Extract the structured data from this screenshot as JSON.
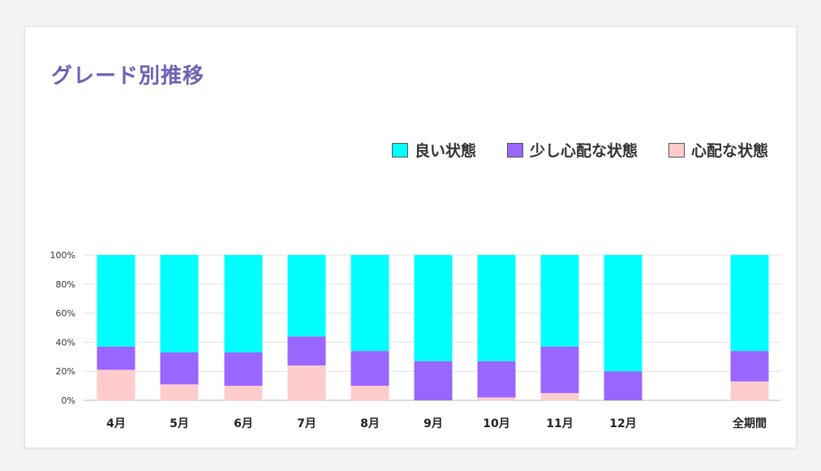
{
  "card": {
    "title": "グレード別推移"
  },
  "chart_data": {
    "type": "bar",
    "stacked": true,
    "percent": true,
    "categories": [
      "4月",
      "5月",
      "6月",
      "7月",
      "8月",
      "9月",
      "10月",
      "11月",
      "12月",
      "全期間"
    ],
    "series": [
      {
        "name": "心配な状態",
        "color": "#ffcccc",
        "values": [
          21,
          11,
          10,
          24,
          10,
          0,
          2,
          5,
          0,
          13
        ]
      },
      {
        "name": "少し心配な状態",
        "color": "#9966ff",
        "values": [
          16,
          22,
          23,
          20,
          24,
          27,
          25,
          32,
          20,
          21
        ]
      },
      {
        "name": "良い状態",
        "color": "#00ffff",
        "values": [
          63,
          67,
          67,
          56,
          66,
          73,
          73,
          63,
          80,
          66
        ]
      }
    ],
    "legend_order": [
      "良い状態",
      "少し心配な状態",
      "心配な状態"
    ],
    "yticks": [
      "0%",
      "20%",
      "40%",
      "60%",
      "80%",
      "100%"
    ],
    "ylim": [
      0,
      100
    ],
    "legend_position": "top-right",
    "grid": true
  }
}
